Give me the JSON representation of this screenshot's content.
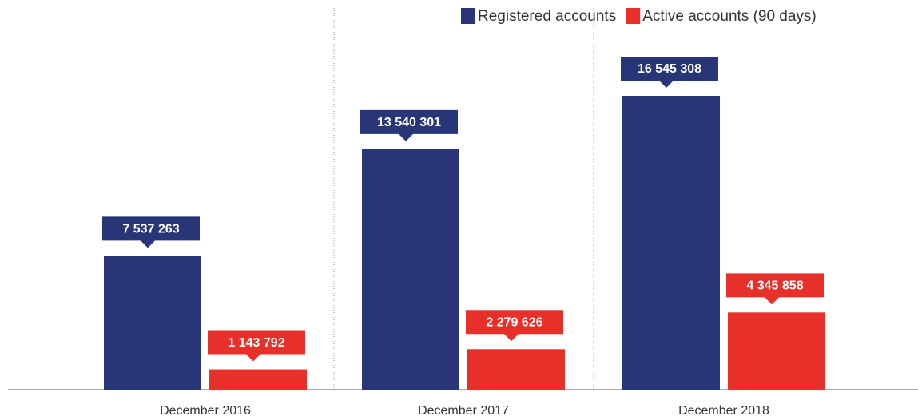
{
  "chart_data": {
    "type": "bar",
    "categories": [
      "December 2016",
      "December 2017",
      "December 2018"
    ],
    "series": [
      {
        "name": "Registered accounts",
        "color": "#283677",
        "values": [
          7537263,
          13540301,
          16545308
        ],
        "value_labels": [
          "7 537 263",
          "13 540 301",
          "16 545 308"
        ]
      },
      {
        "name": "Active accounts (90 days)",
        "color": "#e8302b",
        "values": [
          1143792,
          2279626,
          4345858
        ],
        "value_labels": [
          "1 143 792",
          "2 279 626",
          "4 345 858"
        ]
      }
    ],
    "legend": "top-right"
  }
}
